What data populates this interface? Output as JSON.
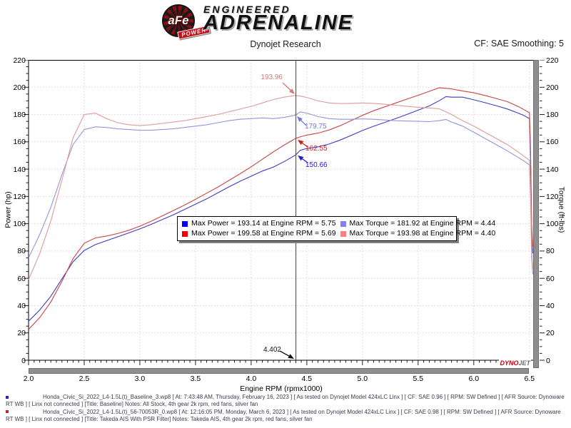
{
  "header": {
    "brand": {
      "badge": "aFe",
      "badge_sub": "POWER",
      "line1": "ENGINEERED",
      "line2": "ADRENALINE"
    },
    "title": "Dynojet Research",
    "cf": "CF: SAE Smoothing: 5"
  },
  "colors": {
    "grid": "#e4cfcf",
    "cursor": "#3f3f3f",
    "frame": "#000000",
    "tick": "#222222"
  },
  "chart_data": {
    "type": "line",
    "title": "Dynojet Research",
    "xlabel": "Engine RPM (rpmx1000)",
    "ylabel_left": "Power (hp)",
    "ylabel_right": "Torque (ft-lbs)",
    "xlim": [
      2.0,
      6.54
    ],
    "ylim": [
      0,
      220
    ],
    "x_major_ticks": [
      2.0,
      2.5,
      3.0,
      3.5,
      4.0,
      4.5,
      5.0,
      5.5,
      6.0,
      6.5
    ],
    "y_major_ticks": [
      0,
      20,
      40,
      60,
      80,
      100,
      120,
      140,
      160,
      180,
      200,
      220
    ],
    "grid": true,
    "legend_position": "center",
    "cursor": {
      "rpm": 4.402,
      "label": "4.402"
    },
    "x": [
      2.0,
      2.1,
      2.2,
      2.3,
      2.4,
      2.5,
      2.6,
      2.7,
      2.8,
      2.9,
      3.0,
      3.1,
      3.2,
      3.3,
      3.4,
      3.5,
      3.6,
      3.7,
      3.8,
      3.9,
      4.0,
      4.1,
      4.2,
      4.3,
      4.4,
      4.44,
      4.5,
      4.6,
      4.7,
      4.8,
      4.9,
      5.0,
      5.1,
      5.2,
      5.3,
      5.4,
      5.5,
      5.6,
      5.69,
      5.75,
      5.8,
      5.9,
      6.0,
      6.1,
      6.2,
      6.3,
      6.4,
      6.45,
      6.5,
      6.51,
      6.52,
      6.53
    ],
    "series": [
      {
        "name": "Baseline Power (hp)",
        "color": "#3c3cc4",
        "values": [
          28.6,
          36.8,
          46.9,
          59.6,
          72.2,
          80.4,
          84.7,
          87.6,
          90.4,
          93.3,
          96.2,
          99.5,
          103.0,
          106.5,
          110.4,
          114.3,
          118.2,
          122.6,
          127.0,
          131.1,
          134.8,
          138.6,
          141.5,
          145.7,
          150.4,
          153.8,
          155.1,
          156.3,
          158.4,
          161.3,
          164.7,
          168.3,
          171.4,
          174.2,
          177.1,
          180.1,
          183.2,
          186.3,
          190.1,
          193.14,
          192.7,
          192.7,
          190.8,
          188.7,
          186.5,
          184.1,
          181.0,
          179.3,
          177.0,
          148.7,
          93.1,
          78.3
        ]
      },
      {
        "name": "Takeda AIS Power (hp)",
        "color": "#c84444",
        "values": [
          22.5,
          31.2,
          42.7,
          57.8,
          74.5,
          85.7,
          89.6,
          91.0,
          92.8,
          95.2,
          98.2,
          101.8,
          105.7,
          109.6,
          113.6,
          117.9,
          122.4,
          126.8,
          131.7,
          136.6,
          141.7,
          147.2,
          152.7,
          157.8,
          162.5,
          163.6,
          164.9,
          166.4,
          168.7,
          171.8,
          175.6,
          179.4,
          182.8,
          185.6,
          188.5,
          191.3,
          194.1,
          197.0,
          199.58,
          199.2,
          198.8,
          197.2,
          195.9,
          194.0,
          191.8,
          189.5,
          185.8,
          183.6,
          181.3,
          154.9,
          99.3,
          83.3
        ]
      },
      {
        "name": "Baseline Torque (ft-lbs)",
        "color": "#9494dd",
        "values": [
          75,
          92,
          112,
          136,
          158,
          169,
          171,
          170.5,
          169.5,
          169,
          168.5,
          168.5,
          169,
          169.5,
          170.5,
          171.5,
          172.5,
          174,
          175.5,
          176.5,
          177,
          177.5,
          177,
          178,
          179.6,
          181.92,
          181,
          178.5,
          177,
          176.5,
          176.5,
          176.8,
          176.5,
          176,
          175.5,
          175.2,
          175,
          174.8,
          175.5,
          176.4,
          174.5,
          171.5,
          167,
          162.5,
          158,
          153.5,
          148.5,
          146,
          143,
          120,
          75,
          63
        ]
      },
      {
        "name": "Takeda AIS Torque (ft-lbs)",
        "color": "#e09a9a",
        "values": [
          59,
          78,
          102,
          132,
          163,
          180,
          181,
          177,
          174,
          172.5,
          172,
          172.5,
          173.5,
          174.5,
          175.5,
          177,
          178.5,
          180,
          182,
          184,
          186,
          188.5,
          191,
          192.8,
          193.98,
          193.5,
          192.5,
          190,
          188.5,
          188,
          188.2,
          188.5,
          188.2,
          187.5,
          186.8,
          186,
          185.3,
          184.8,
          184.2,
          182,
          180,
          175.5,
          171.5,
          167,
          162.5,
          158,
          152.5,
          149.5,
          146.5,
          125,
          80,
          67
        ]
      }
    ],
    "annotations": [
      {
        "text": "193.96",
        "rpm": 4.402,
        "value": 193.96,
        "color": "#dd7575"
      },
      {
        "text": "179.75",
        "rpm": 4.402,
        "value": 179.75,
        "color": "#7575dd"
      },
      {
        "text": "162.55",
        "rpm": 4.402,
        "value": 162.55,
        "color": "#cc2020"
      },
      {
        "text": "150.66",
        "rpm": 4.402,
        "value": 150.66,
        "color": "#2020cc"
      },
      {
        "text": "4.402",
        "rpm": 4.402,
        "value": 0,
        "color": "#111111"
      }
    ]
  },
  "legend": {
    "items": [
      {
        "color": "#0000ee",
        "label": "Max Power = 193.14 at Engine RPM = 5.75"
      },
      {
        "color": "#8080ff",
        "label": "Max Torque = 181.92 at Engine RPM = 4.44"
      },
      {
        "color": "#ee0000",
        "label": "Max Power = 199.58 at Engine RPM = 5.69"
      },
      {
        "color": "#ff8080",
        "label": "Max Torque = 193.98 at Engine RPM = 4.40"
      }
    ]
  },
  "watermark": {
    "part1": "DYNO",
    "part2": "JET"
  },
  "footer": {
    "runs": [
      {
        "bullet_color": "#2222cc",
        "text": "Honda_Civic_Si_2022_L4-1.5L(t)_Baseline_3.wp8 [ At: 7:43:48 AM, Thursday, February 16, 2023 ] [ As tested on Dynojet Model 424xLC Linx ] [ CF: SAE 0.96 ] [ RPM: SW Defined ] [ AFR Source: Dynoware RT WB ] [ Linx not connected ] [Title: Baseline]  Notes: All Stock, 4th gear 2k rpm, red fans, silver fan"
      },
      {
        "bullet_color": "#cc2222",
        "text": "Honda_Civic_Si_2022_L4-1.5L(t)_56-70053R_0.wp8 [ At: 12:16:05 PM, Monday, March 6, 2023 ] [ As tested on Dynojet Model 424xLC Linx ] [ CF: SAE 0.98 ] [ RPM: SW Defined ] [ AFR Source: Dynoware RT WB ] [ Linx not connected ] [Title: Takeda AIS With PSR Filter]  Notes: Takeda AIS, 4th gear 2k rpm, red fans, silver fan"
      }
    ]
  }
}
